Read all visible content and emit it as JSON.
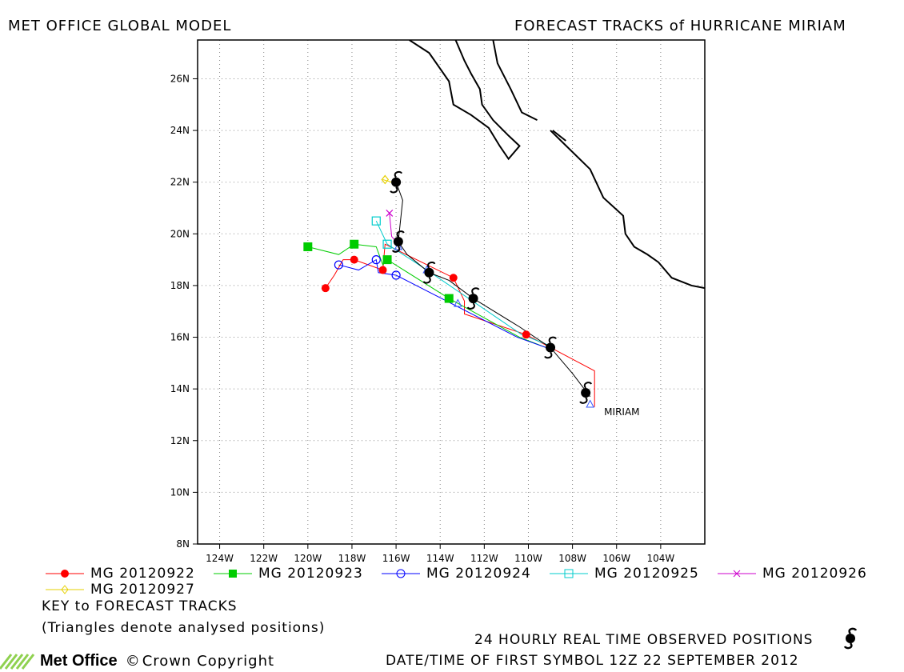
{
  "header": {
    "left": "MET OFFICE GLOBAL MODEL",
    "right": "FORECAST TRACKS of HURRICANE MIRIAM"
  },
  "chart_data": {
    "type": "line",
    "title": "FORECAST TRACKS of HURRICANE MIRIAM",
    "xlabel": "",
    "ylabel": "",
    "xlim": [
      -125,
      -102
    ],
    "ylim": [
      8,
      27.5
    ],
    "grid": true,
    "x_ticks": [
      "124W",
      "122W",
      "120W",
      "118W",
      "116W",
      "114W",
      "112W",
      "110W",
      "108W",
      "106W",
      "104W"
    ],
    "y_ticks": [
      "8N",
      "10N",
      "12N",
      "14N",
      "16N",
      "18N",
      "20N",
      "22N",
      "24N",
      "26N"
    ],
    "storm_label": "MIRIAM",
    "observed_track": {
      "name": "24 HOURLY REAL TIME OBSERVED POSITIONS",
      "color": "#000000",
      "points": [
        [
          -107.2,
          13.7
        ],
        [
          -108.0,
          14.6
        ],
        [
          -109.0,
          15.6
        ],
        [
          -110.4,
          16.4
        ],
        [
          -112.5,
          17.5
        ],
        [
          -113.6,
          18.2
        ],
        [
          -114.5,
          18.5
        ],
        [
          -115.5,
          19.2
        ],
        [
          -115.9,
          19.7
        ],
        [
          -115.7,
          21.3
        ],
        [
          -116.0,
          22.0
        ]
      ],
      "symbols": [
        [
          -107.4,
          13.85
        ],
        [
          -109.0,
          15.6
        ],
        [
          -112.5,
          17.5
        ],
        [
          -114.5,
          18.5
        ],
        [
          -115.9,
          19.7
        ],
        [
          -116.0,
          22.0
        ]
      ]
    },
    "series": [
      {
        "name": "MG 20120922",
        "color": "#ff0000",
        "marker": "circle-filled",
        "line": [
          [
            -107.0,
            13.3
          ],
          [
            -107.0,
            14.7
          ],
          [
            -110.1,
            16.1
          ],
          [
            -112.9,
            16.9
          ],
          [
            -112.9,
            17.4
          ],
          [
            -113.4,
            18.3
          ],
          [
            -116.5,
            19.6
          ],
          [
            -116.6,
            18.6
          ],
          [
            -117.9,
            19.0
          ],
          [
            -118.4,
            19.0
          ],
          [
            -118.8,
            18.4
          ],
          [
            -119.2,
            17.9
          ]
        ],
        "markers": [
          [
            -110.1,
            16.1
          ],
          [
            -113.4,
            18.3
          ],
          [
            -116.6,
            18.6
          ],
          [
            -117.9,
            19.0
          ],
          [
            -119.2,
            17.9
          ]
        ]
      },
      {
        "name": "MG 20120923",
        "color": "#00cc00",
        "marker": "square-filled",
        "line": [
          [
            -109.2,
            15.6
          ],
          [
            -110.4,
            16.0
          ],
          [
            -113.6,
            17.5
          ],
          [
            -116.4,
            19.0
          ],
          [
            -116.6,
            18.8
          ],
          [
            -116.9,
            19.5
          ],
          [
            -117.9,
            19.6
          ],
          [
            -118.6,
            19.2
          ],
          [
            -120.0,
            19.5
          ]
        ],
        "markers": [
          [
            -113.6,
            17.5
          ],
          [
            -116.4,
            19.0
          ],
          [
            -117.9,
            19.6
          ],
          [
            -120.0,
            19.5
          ]
        ]
      },
      {
        "name": "MG 20120924",
        "color": "#0000ff",
        "marker": "circle-open",
        "line": [
          [
            -109.2,
            15.6
          ],
          [
            -110.5,
            16.0
          ],
          [
            -116.0,
            18.4
          ],
          [
            -116.8,
            18.5
          ],
          [
            -116.9,
            19.0
          ],
          [
            -117.7,
            18.6
          ],
          [
            -118.6,
            18.8
          ]
        ],
        "markers": [
          [
            -116.0,
            18.4
          ],
          [
            -116.9,
            19.0
          ],
          [
            -118.6,
            18.8
          ]
        ]
      },
      {
        "name": "MG 20120925",
        "color": "#00cccc",
        "marker": "square-open",
        "line": [
          [
            -109.1,
            15.7
          ],
          [
            -110.3,
            16.1
          ],
          [
            -114.6,
            18.6
          ],
          [
            -116.4,
            19.6
          ],
          [
            -116.9,
            20.5
          ]
        ],
        "markers": [
          [
            -116.4,
            19.6
          ],
          [
            -116.9,
            20.5
          ]
        ]
      },
      {
        "name": "MG 20120926",
        "color": "#cc00cc",
        "marker": "cross",
        "line": [
          [
            -115.8,
            19.5
          ],
          [
            -116.2,
            19.9
          ],
          [
            -116.3,
            20.8
          ]
        ],
        "markers": [
          [
            -116.3,
            20.8
          ]
        ]
      },
      {
        "name": "MG 20120927",
        "color": "#e6d000",
        "marker": "diamond-open",
        "line": [
          [
            -116.2,
            22.0
          ],
          [
            -116.6,
            22.1
          ]
        ],
        "markers": [
          [
            -116.5,
            22.1
          ]
        ]
      }
    ],
    "analysed_positions": [
      [
        -107.2,
        13.4
      ],
      [
        -113.2,
        17.3
      ],
      [
        -115.9,
        19.5
      ],
      [
        -114.6,
        18.6
      ]
    ],
    "coastlines": [
      [
        [
          -115.4,
          27.5
        ],
        [
          -114.5,
          27.0
        ],
        [
          -113.6,
          25.9
        ],
        [
          -113.4,
          25.0
        ],
        [
          -112.6,
          24.6
        ],
        [
          -111.8,
          24.1
        ],
        [
          -111.3,
          23.4
        ],
        [
          -110.9,
          22.9
        ],
        [
          -110.4,
          23.4
        ],
        [
          -110.9,
          23.8
        ],
        [
          -111.6,
          24.4
        ],
        [
          -112.1,
          25.0
        ],
        [
          -112.2,
          25.6
        ],
        [
          -112.6,
          26.2
        ],
        [
          -112.9,
          26.7
        ],
        [
          -113.3,
          27.5
        ]
      ],
      [
        [
          -111.6,
          27.5
        ],
        [
          -111.4,
          26.6
        ],
        [
          -110.8,
          25.6
        ],
        [
          -110.3,
          24.7
        ],
        [
          -109.6,
          24.4
        ]
      ],
      [
        [
          -109.0,
          24.0
        ],
        [
          -108.4,
          23.5
        ],
        [
          -107.2,
          22.5
        ],
        [
          -106.6,
          21.4
        ],
        [
          -105.7,
          20.7
        ],
        [
          -105.6,
          20.0
        ],
        [
          -105.2,
          19.5
        ],
        [
          -104.6,
          19.2
        ],
        [
          -104.1,
          18.9
        ],
        [
          -103.5,
          18.3
        ],
        [
          -102.6,
          18.0
        ],
        [
          -102.0,
          17.9
        ]
      ],
      [
        [
          -108.3,
          23.6
        ],
        [
          -108.9,
          24.0
        ]
      ]
    ]
  },
  "legend": {
    "row1": [
      "MG 20120922",
      "MG 20120923",
      "MG 20120924",
      "MG 20120925",
      "MG 20120926"
    ],
    "row2": [
      "MG 20120927"
    ]
  },
  "notes": {
    "key": "KEY to FORECAST TRACKS",
    "triangles": "(Triangles denote analysed positions)",
    "observed": "24 HOURLY REAL TIME OBSERVED POSITIONS",
    "datetime": "DATE/TIME OF FIRST SYMBOL 12Z 22 SEPTEMBER 2012"
  },
  "footer": {
    "logo": "Met Office",
    "copyright": "Crown Copyright"
  }
}
